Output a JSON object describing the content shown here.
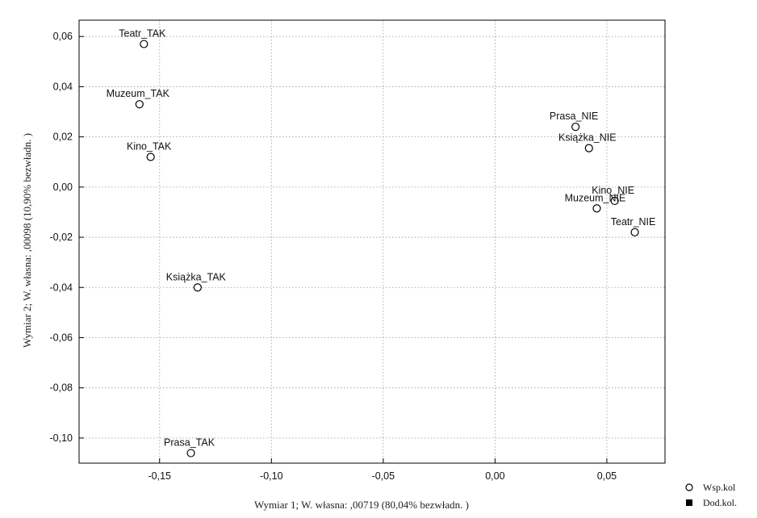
{
  "chart_data": {
    "type": "scatter",
    "xlabel": "Wymiar    1; W. własna:  ,00719 (80,04% bezwładn. )",
    "ylabel": "Wymiar    2; W. własna: ,00098 (10,90% bezwładn. )",
    "xlim": [
      -0.186,
      0.076
    ],
    "ylim": [
      -0.11,
      0.0665
    ],
    "xticks": [
      -0.15,
      -0.1,
      -0.05,
      0.0,
      0.05
    ],
    "xtick_labels": [
      "-0,15",
      "-0,10",
      "-0,05",
      "0,00",
      "0,05"
    ],
    "yticks": [
      0.06,
      0.04,
      0.02,
      0.0,
      -0.02,
      -0.04,
      -0.06,
      -0.08,
      -0.1
    ],
    "ytick_labels": [
      "0,06",
      "0,04",
      "0,02",
      "0,00",
      "-0,02",
      "-0,04",
      "-0,06",
      "-0,08",
      "-0,10"
    ],
    "grid": true,
    "legend_position": "bottom-right",
    "legend": [
      {
        "label": "Wsp.kol",
        "marker": "open-circle"
      },
      {
        "label": "Dod.kol.",
        "marker": "filled-square"
      }
    ],
    "series": [
      {
        "name": "Wsp.kol",
        "marker": "open-circle",
        "points": [
          {
            "label": "Teatr_TAK",
            "x": -0.157,
            "y": 0.057
          },
          {
            "label": "Muzeum_TAK",
            "x": -0.159,
            "y": 0.033
          },
          {
            "label": "Kino_TAK",
            "x": -0.154,
            "y": 0.012
          },
          {
            "label": "Książka_TAK",
            "x": -0.133,
            "y": -0.04
          },
          {
            "label": "Prasa_TAK",
            "x": -0.136,
            "y": -0.106
          },
          {
            "label": "Prasa_NIE",
            "x": 0.036,
            "y": 0.024
          },
          {
            "label": "Książka_NIE",
            "x": 0.042,
            "y": 0.0155
          },
          {
            "label": "Kino_NIE",
            "x": 0.0535,
            "y": -0.0055
          },
          {
            "label": "Muzeum_NIE",
            "x": 0.0455,
            "y": -0.0085
          },
          {
            "label": "Teatr_NIE",
            "x": 0.0625,
            "y": -0.018
          }
        ]
      }
    ]
  }
}
